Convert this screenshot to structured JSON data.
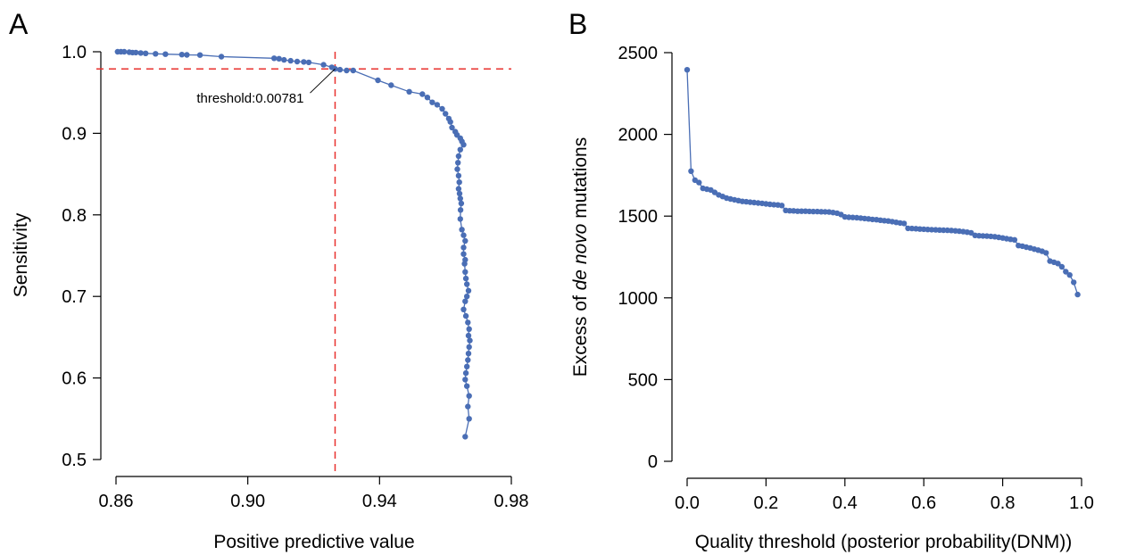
{
  "panels": {
    "a_label": "A",
    "b_label": "B"
  },
  "chart_data": [
    {
      "type": "line",
      "panel": "A",
      "xlabel": "Positive predictive value",
      "ylabel": "Sensitivity",
      "xlim": [
        0.86,
        0.98
      ],
      "ylim": [
        0.5,
        1.0
      ],
      "xticks": [
        "0.86",
        "0.90",
        "0.94",
        "0.98"
      ],
      "yticks": [
        "0.5",
        "0.6",
        "0.7",
        "0.8",
        "0.9",
        "1.0"
      ],
      "color": "#4a6eb5",
      "reference_color": "#e8312e",
      "reference_lines": {
        "x": 0.9265,
        "y": 0.979
      },
      "annotation": {
        "text": "threshold:0.00781",
        "x": 0.9265,
        "y": 0.979
      },
      "points": [
        [
          0.8605,
          1.0
        ],
        [
          0.8615,
          1.0
        ],
        [
          0.8625,
          1.0
        ],
        [
          0.864,
          0.9995
        ],
        [
          0.865,
          0.999
        ],
        [
          0.866,
          0.999
        ],
        [
          0.8675,
          0.9985
        ],
        [
          0.869,
          0.998
        ],
        [
          0.872,
          0.9975
        ],
        [
          0.875,
          0.997
        ],
        [
          0.88,
          0.9965
        ],
        [
          0.8815,
          0.9962
        ],
        [
          0.8855,
          0.996
        ],
        [
          0.892,
          0.994
        ],
        [
          0.908,
          0.992
        ],
        [
          0.9095,
          0.9915
        ],
        [
          0.911,
          0.99
        ],
        [
          0.913,
          0.989
        ],
        [
          0.915,
          0.988
        ],
        [
          0.917,
          0.9875
        ],
        [
          0.9185,
          0.987
        ],
        [
          0.923,
          0.984
        ],
        [
          0.9255,
          0.981
        ],
        [
          0.9265,
          0.979
        ],
        [
          0.928,
          0.978
        ],
        [
          0.93,
          0.977
        ],
        [
          0.932,
          0.977
        ],
        [
          0.9395,
          0.965
        ],
        [
          0.9435,
          0.959
        ],
        [
          0.949,
          0.951
        ],
        [
          0.953,
          0.948
        ],
        [
          0.9545,
          0.944
        ],
        [
          0.956,
          0.938
        ],
        [
          0.9575,
          0.935
        ],
        [
          0.959,
          0.93
        ],
        [
          0.96,
          0.924
        ],
        [
          0.961,
          0.918
        ],
        [
          0.9615,
          0.914
        ],
        [
          0.962,
          0.907
        ],
        [
          0.963,
          0.902
        ],
        [
          0.9635,
          0.898
        ],
        [
          0.9645,
          0.894
        ],
        [
          0.965,
          0.89
        ],
        [
          0.9655,
          0.886
        ],
        [
          0.9645,
          0.88
        ],
        [
          0.964,
          0.872
        ],
        [
          0.9638,
          0.864
        ],
        [
          0.9636,
          0.856
        ],
        [
          0.964,
          0.848
        ],
        [
          0.9642,
          0.84
        ],
        [
          0.964,
          0.832
        ],
        [
          0.9643,
          0.826
        ],
        [
          0.9645,
          0.82
        ],
        [
          0.9648,
          0.814
        ],
        [
          0.9646,
          0.806
        ],
        [
          0.9645,
          0.795
        ],
        [
          0.965,
          0.782
        ],
        [
          0.9655,
          0.775
        ],
        [
          0.966,
          0.768
        ],
        [
          0.9655,
          0.76
        ],
        [
          0.9655,
          0.752
        ],
        [
          0.966,
          0.745
        ],
        [
          0.9658,
          0.74
        ],
        [
          0.966,
          0.73
        ],
        [
          0.9662,
          0.722
        ],
        [
          0.9665,
          0.715
        ],
        [
          0.967,
          0.707
        ],
        [
          0.9665,
          0.7
        ],
        [
          0.966,
          0.694
        ],
        [
          0.9655,
          0.684
        ],
        [
          0.9662,
          0.676
        ],
        [
          0.9668,
          0.668
        ],
        [
          0.9672,
          0.66
        ],
        [
          0.967,
          0.652
        ],
        [
          0.9674,
          0.646
        ],
        [
          0.9672,
          0.638
        ],
        [
          0.967,
          0.63
        ],
        [
          0.9668,
          0.622
        ],
        [
          0.9665,
          0.614
        ],
        [
          0.9662,
          0.606
        ],
        [
          0.966,
          0.598
        ],
        [
          0.9665,
          0.59
        ],
        [
          0.9672,
          0.578
        ],
        [
          0.9668,
          0.565
        ],
        [
          0.9672,
          0.55
        ],
        [
          0.966,
          0.528
        ]
      ]
    },
    {
      "type": "line",
      "panel": "B",
      "xlabel_parts": [
        "Quality threshold (posterior probability(DNM))"
      ],
      "ylabel_parts": [
        "Excess of ",
        "de novo",
        " mutations"
      ],
      "xlim": [
        0.0,
        1.0
      ],
      "ylim": [
        0,
        2500
      ],
      "xticks": [
        "0.0",
        "0.2",
        "0.4",
        "0.6",
        "0.8",
        "1.0"
      ],
      "yticks": [
        "0",
        "500",
        "1000",
        "1500",
        "2000",
        "2500"
      ],
      "color": "#4a6eb5",
      "points": [
        [
          0.0,
          2395
        ],
        [
          0.01,
          1775
        ],
        [
          0.02,
          1720
        ],
        [
          0.03,
          1705
        ],
        [
          0.04,
          1670
        ],
        [
          0.05,
          1665
        ],
        [
          0.06,
          1660
        ],
        [
          0.07,
          1645
        ],
        [
          0.08,
          1630
        ],
        [
          0.09,
          1620
        ],
        [
          0.1,
          1610
        ],
        [
          0.11,
          1605
        ],
        [
          0.12,
          1600
        ],
        [
          0.13,
          1595
        ],
        [
          0.14,
          1590
        ],
        [
          0.15,
          1588
        ],
        [
          0.16,
          1585
        ],
        [
          0.17,
          1583
        ],
        [
          0.18,
          1580
        ],
        [
          0.19,
          1578
        ],
        [
          0.2,
          1575
        ],
        [
          0.21,
          1572
        ],
        [
          0.22,
          1570
        ],
        [
          0.23,
          1568
        ],
        [
          0.24,
          1565
        ],
        [
          0.25,
          1535
        ],
        [
          0.26,
          1533
        ],
        [
          0.27,
          1532
        ],
        [
          0.28,
          1530
        ],
        [
          0.29,
          1530
        ],
        [
          0.3,
          1530
        ],
        [
          0.31,
          1529
        ],
        [
          0.32,
          1528
        ],
        [
          0.33,
          1528
        ],
        [
          0.34,
          1527
        ],
        [
          0.35,
          1526
        ],
        [
          0.36,
          1525
        ],
        [
          0.37,
          1522
        ],
        [
          0.38,
          1518
        ],
        [
          0.39,
          1510
        ],
        [
          0.4,
          1495
        ],
        [
          0.41,
          1493
        ],
        [
          0.42,
          1492
        ],
        [
          0.43,
          1490
        ],
        [
          0.44,
          1488
        ],
        [
          0.45,
          1485
        ],
        [
          0.46,
          1483
        ],
        [
          0.47,
          1480
        ],
        [
          0.48,
          1478
        ],
        [
          0.49,
          1475
        ],
        [
          0.5,
          1472
        ],
        [
          0.51,
          1470
        ],
        [
          0.52,
          1466
        ],
        [
          0.53,
          1462
        ],
        [
          0.54,
          1458
        ],
        [
          0.55,
          1455
        ],
        [
          0.56,
          1425
        ],
        [
          0.57,
          1424
        ],
        [
          0.58,
          1423
        ],
        [
          0.59,
          1421
        ],
        [
          0.6,
          1420
        ],
        [
          0.61,
          1418
        ],
        [
          0.62,
          1417
        ],
        [
          0.63,
          1416
        ],
        [
          0.64,
          1415
        ],
        [
          0.65,
          1414
        ],
        [
          0.66,
          1413
        ],
        [
          0.67,
          1412
        ],
        [
          0.68,
          1410
        ],
        [
          0.69,
          1408
        ],
        [
          0.7,
          1405
        ],
        [
          0.71,
          1402
        ],
        [
          0.72,
          1398
        ],
        [
          0.73,
          1382
        ],
        [
          0.74,
          1380
        ],
        [
          0.75,
          1379
        ],
        [
          0.76,
          1378
        ],
        [
          0.77,
          1376
        ],
        [
          0.78,
          1374
        ],
        [
          0.79,
          1370
        ],
        [
          0.8,
          1366
        ],
        [
          0.81,
          1362
        ],
        [
          0.82,
          1358
        ],
        [
          0.83,
          1355
        ],
        [
          0.84,
          1320
        ],
        [
          0.85,
          1316
        ],
        [
          0.86,
          1310
        ],
        [
          0.87,
          1305
        ],
        [
          0.88,
          1298
        ],
        [
          0.89,
          1292
        ],
        [
          0.9,
          1285
        ],
        [
          0.91,
          1275
        ],
        [
          0.92,
          1225
        ],
        [
          0.93,
          1218
        ],
        [
          0.94,
          1210
        ],
        [
          0.95,
          1190
        ],
        [
          0.96,
          1160
        ],
        [
          0.97,
          1140
        ],
        [
          0.98,
          1095
        ],
        [
          0.99,
          1020
        ]
      ]
    }
  ]
}
